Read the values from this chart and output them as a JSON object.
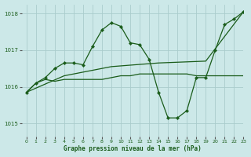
{
  "background_color": "#cce8e8",
  "grid_color": "#aacccc",
  "line_color": "#1a5c1a",
  "xlabel": "Graphe pression niveau de la mer (hPa)",
  "ylim": [
    1014.65,
    1018.25
  ],
  "xlim": [
    -0.5,
    23
  ],
  "yticks": [
    1015,
    1016,
    1017,
    1018
  ],
  "xticks": [
    0,
    1,
    2,
    3,
    4,
    5,
    6,
    7,
    8,
    9,
    10,
    11,
    12,
    13,
    14,
    15,
    16,
    17,
    18,
    19,
    20,
    21,
    22,
    23
  ],
  "series1_x": [
    0,
    1,
    2,
    3,
    4,
    5,
    6,
    7,
    8,
    9,
    10,
    11,
    12,
    13,
    14,
    15,
    16,
    17,
    18,
    19,
    20,
    21,
    22,
    23
  ],
  "series1_y": [
    1015.85,
    1016.1,
    1016.25,
    1016.5,
    1016.65,
    1016.65,
    1016.6,
    1017.1,
    1017.55,
    1017.75,
    1017.65,
    1017.2,
    1017.15,
    1016.75,
    1015.85,
    1015.15,
    1015.15,
    1015.35,
    1016.25,
    1016.25,
    1017.0,
    1017.7,
    1017.85,
    1018.05
  ],
  "series2_x": [
    0,
    4,
    9,
    14,
    19,
    23
  ],
  "series2_y": [
    1015.85,
    1016.3,
    1016.55,
    1016.65,
    1016.7,
    1018.05
  ],
  "series3_x": [
    0,
    1,
    2,
    3,
    4,
    5,
    6,
    7,
    8,
    9,
    10,
    11,
    12,
    13,
    14,
    15,
    16,
    17,
    18,
    19,
    20,
    21,
    22,
    23
  ],
  "series3_y": [
    1015.85,
    1016.1,
    1016.2,
    1016.15,
    1016.2,
    1016.2,
    1016.2,
    1016.2,
    1016.2,
    1016.25,
    1016.3,
    1016.3,
    1016.35,
    1016.35,
    1016.35,
    1016.35,
    1016.35,
    1016.35,
    1016.3,
    1016.3,
    1016.3,
    1016.3,
    1016.3,
    1016.3
  ]
}
